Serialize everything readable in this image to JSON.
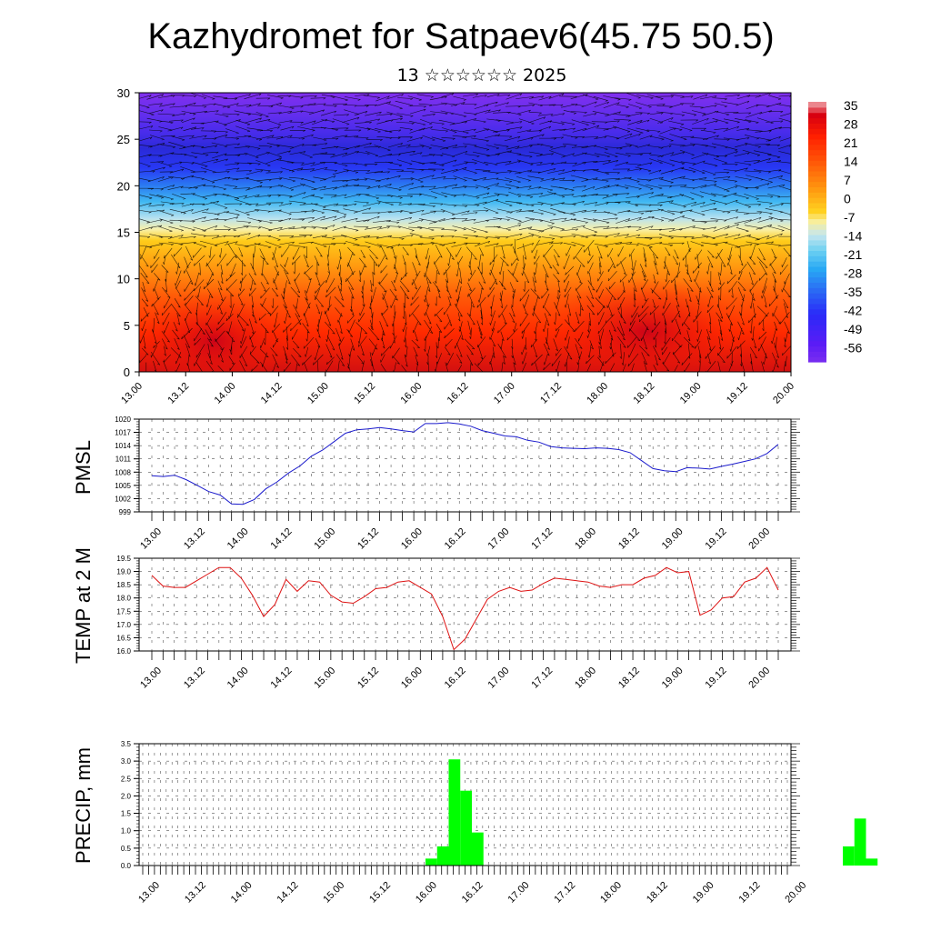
{
  "header": {
    "title": "Kazhydromet for Satpaev6(45.75 50.5)",
    "subtitle": "13 ☆☆☆☆☆☆ 2025"
  },
  "colors": {
    "pmsl_line": "#1a1acc",
    "temp_line": "#dd1111",
    "precip_bar": "#00ff00",
    "wind_vectors": "#000000"
  },
  "chart_data": [
    {
      "type": "heatmap",
      "title": "",
      "xlabel": "",
      "ylabel": "",
      "ylim": [
        0,
        30
      ],
      "y_ticks": [
        "0",
        "5",
        "10",
        "15",
        "20",
        "25",
        "30"
      ],
      "x_tick_labels": [
        "13.00",
        "13.12",
        "14.00",
        "14.12",
        "15.00",
        "15.12",
        "16.00",
        "16.12",
        "17.00",
        "17.12",
        "18.00",
        "18.12",
        "19.00",
        "19.12",
        "20.00"
      ],
      "overlay": "wind vectors",
      "colorbar": {
        "labels": [
          "35",
          "28",
          "21",
          "14",
          "7",
          "0",
          "-7",
          "-14",
          "-21",
          "-28",
          "-35",
          "-42",
          "-49",
          "-56"
        ],
        "range": [
          -63,
          35
        ],
        "colors": [
          {
            "value": -63,
            "color": "#7a2ef0"
          },
          {
            "value": -56,
            "color": "#5a1cf6"
          },
          {
            "value": -45,
            "color": "#2a2af8"
          },
          {
            "value": -36,
            "color": "#2a6af4"
          },
          {
            "value": -28,
            "color": "#28a8f4"
          },
          {
            "value": -21,
            "color": "#6cd0f2"
          },
          {
            "value": -15,
            "color": "#c6e6ee"
          },
          {
            "value": -10,
            "color": "#f8ee9a"
          },
          {
            "value": -6,
            "color": "#ffd020"
          },
          {
            "value": 2,
            "color": "#ff9a10"
          },
          {
            "value": 12,
            "color": "#ff5a08"
          },
          {
            "value": 22,
            "color": "#ff2000"
          },
          {
            "value": 30,
            "color": "#d80010"
          },
          {
            "value": 35,
            "color": "#f0a8ac"
          }
        ]
      }
    },
    {
      "type": "line",
      "ylabel": "PMSL",
      "ylim": [
        999,
        1020
      ],
      "y_ticks": [
        "999",
        "1002",
        "1005",
        "1008",
        "1011",
        "1014",
        "1017",
        "1020"
      ],
      "x_tick_labels": [
        "13.00",
        "13.12",
        "14.00",
        "14.12",
        "15.00",
        "15.12",
        "16.00",
        "16.12",
        "17.00",
        "17.12",
        "18.00",
        "18.12",
        "19.00",
        "19.12",
        "20.00"
      ],
      "series": [
        {
          "values": [
            1007.2,
            1007.0,
            1007.3,
            1006.3,
            1005.0,
            1003.6,
            1002.8,
            1000.8,
            1000.7,
            1001.8,
            1004.2,
            1005.8,
            1007.8,
            1009.4,
            1011.6,
            1013.0,
            1014.9,
            1016.8,
            1017.6,
            1017.8,
            1018.1,
            1017.8,
            1017.4,
            1017.1,
            1019.0,
            1019.0,
            1019.2,
            1018.9,
            1018.4,
            1017.4,
            1016.8,
            1016.2,
            1016.0,
            1015.2,
            1014.8,
            1013.8,
            1013.5,
            1013.4,
            1013.3,
            1013.5,
            1013.4,
            1013.1,
            1012.4,
            1010.6,
            1008.8,
            1008.3,
            1008.1,
            1009.0,
            1008.9,
            1008.7,
            1009.3,
            1009.8,
            1010.4,
            1011.0,
            1012.2,
            1014.3
          ]
        }
      ]
    },
    {
      "type": "line",
      "ylabel": "TEMP at 2 M",
      "ylim": [
        16.0,
        19.5
      ],
      "y_ticks": [
        "16.0",
        "16.5",
        "17.0",
        "17.5",
        "18.0",
        "18.5",
        "19.0",
        "19.5"
      ],
      "x_tick_labels": [
        "13.00",
        "13.12",
        "14.00",
        "14.12",
        "15.00",
        "15.12",
        "16.00",
        "16.12",
        "17.00",
        "17.12",
        "18.00",
        "18.12",
        "19.00",
        "19.12",
        "20.00"
      ],
      "series": [
        {
          "values": [
            18.85,
            18.45,
            18.4,
            18.4,
            18.65,
            18.9,
            19.15,
            19.15,
            18.75,
            18.1,
            17.3,
            17.75,
            18.7,
            18.25,
            18.65,
            18.6,
            18.1,
            17.85,
            17.8,
            18.05,
            18.35,
            18.4,
            18.6,
            18.65,
            18.4,
            18.15,
            17.3,
            16.05,
            16.45,
            17.2,
            17.95,
            18.25,
            18.4,
            18.25,
            18.3,
            18.55,
            18.75,
            18.7,
            18.65,
            18.6,
            18.45,
            18.4,
            18.5,
            18.5,
            18.75,
            18.85,
            19.15,
            18.95,
            19.0,
            17.35,
            17.55,
            18.0,
            18.05,
            18.6,
            18.75,
            19.15,
            18.3
          ]
        }
      ]
    },
    {
      "type": "bar",
      "ylabel": "PRECIP, mm",
      "ylim": [
        0,
        3.5
      ],
      "y_ticks": [
        "0.0",
        "0.5",
        "1.0",
        "1.5",
        "2.0",
        "2.5",
        "3.0",
        "3.5"
      ],
      "x_tick_labels": [
        "13.00",
        "13.12",
        "14.00",
        "14.12",
        "15.00",
        "15.12",
        "16.00",
        "16.12",
        "17.00",
        "17.12",
        "18.00",
        "18.12",
        "19.00",
        "19.12",
        "20.00"
      ],
      "bars": [
        {
          "x": 36,
          "value": 0.2
        },
        {
          "x": 37,
          "value": 0.55
        },
        {
          "x": 38,
          "value": 3.05
        },
        {
          "x": 39,
          "value": 2.15
        },
        {
          "x": 40,
          "value": 0.95
        },
        {
          "x": 72,
          "value": 0.55
        },
        {
          "x": 73,
          "value": 1.35
        },
        {
          "x": 74,
          "value": 0.2
        }
      ]
    }
  ]
}
